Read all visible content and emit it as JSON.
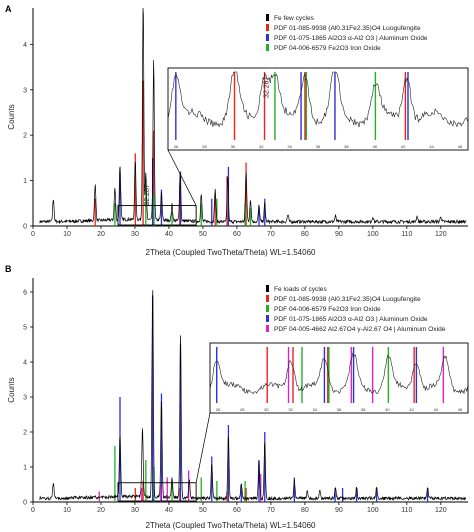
{
  "chart_data": [
    {
      "type": "line",
      "panel_label": "A",
      "xlabel": "2Theta (Coupled TwoTheta/Theta) WL=1.54060",
      "ylabel": "Counts",
      "xlim": [
        0,
        128
      ],
      "ylim": [
        0,
        4.8
      ],
      "xticks": [
        0,
        10,
        20,
        30,
        40,
        50,
        60,
        70,
        80,
        90,
        100,
        110,
        120
      ],
      "yticks": [
        0,
        1,
        2,
        3,
        4
      ],
      "legend_position": "top-right",
      "legend": [
        {
          "label": "Fe few cycles",
          "color": "#000000"
        },
        {
          "label": "PDF 01-085-9938 (Al0.31Fe2.35)O4 Luogufengite",
          "color": "#e8251b"
        },
        {
          "label": "PDF 01-075-1865 Al2O3 α-Al2 O3 | Aluminum Oxide",
          "color": "#2f2fd6"
        },
        {
          "label": "PDF 04-006-6579 Fe2O3 Iron Oxide",
          "color": "#1fb31f"
        }
      ],
      "annotation": "32.287",
      "zoom_box_x": [
        25,
        48
      ],
      "zoom_box_y": [
        0,
        0.45
      ],
      "inset_xticks": [
        "26",
        "28",
        "30",
        "32",
        "34",
        "36",
        "38",
        "40",
        "42",
        "44",
        "46"
      ],
      "reference_lines": [
        {
          "series": "PDF 01-085-9938 (Al0.31Fe2.35)O4 Luogufengite",
          "x": [
            18.3,
            30.1,
            32.4,
            35.5,
            43.2,
            53.6,
            57.1,
            62.7
          ],
          "y": [
            0.6,
            1.6,
            3.2,
            2.1,
            0.9,
            0.7,
            1.1,
            1.4
          ]
        },
        {
          "series": "PDF 01-075-1865 Al2O3 α-Al2 O3 | Aluminum Oxide",
          "x": [
            25.6,
            35.2,
            37.8,
            43.4,
            52.6,
            57.5,
            66.5,
            68.2
          ],
          "y": [
            1.2,
            1.5,
            0.8,
            1.2,
            0.6,
            1.3,
            0.4,
            0.6
          ]
        },
        {
          "series": "PDF 04-006-6579 Fe2O3 Iron Oxide",
          "x": [
            24.1,
            33.2,
            35.6,
            40.9,
            49.5,
            54.1,
            62.4,
            64.0
          ],
          "y": [
            0.5,
            1.0,
            0.7,
            0.3,
            0.5,
            0.6,
            0.5,
            0.4
          ]
        }
      ],
      "pattern": {
        "series": "Fe few cycles",
        "peaks": [
          [
            6,
            0.5
          ],
          [
            18.3,
            0.8
          ],
          [
            24.1,
            0.7
          ],
          [
            25.6,
            1.2
          ],
          [
            30.1,
            1.3
          ],
          [
            32.4,
            4.9
          ],
          [
            33.2,
            1.0
          ],
          [
            35.5,
            3.5
          ],
          [
            37.8,
            0.6
          ],
          [
            40.9,
            0.35
          ],
          [
            43.3,
            1.1
          ],
          [
            49.5,
            0.6
          ],
          [
            53.6,
            0.7
          ],
          [
            57.3,
            1.0
          ],
          [
            62.7,
            1.1
          ],
          [
            64.0,
            0.5
          ],
          [
            66.5,
            0.35
          ],
          [
            68.2,
            0.4
          ],
          [
            75,
            0.15
          ],
          [
            89,
            0.12
          ],
          [
            100,
            0.12
          ],
          [
            113,
            0.12
          ],
          [
            120,
            0.12
          ]
        ]
      }
    },
    {
      "type": "line",
      "panel_label": "B",
      "xlabel": "2Theta (Coupled TwoTheta/Theta) WL=1.54060",
      "ylabel": "Counts",
      "xlim": [
        0,
        128
      ],
      "ylim": [
        0,
        6.4
      ],
      "xticks": [
        0,
        10,
        20,
        30,
        40,
        50,
        60,
        70,
        80,
        90,
        100,
        110,
        120
      ],
      "yticks": [
        0,
        1,
        2,
        3,
        4,
        5,
        6
      ],
      "legend_position": "top-right",
      "legend": [
        {
          "label": "Fe loads of cycles",
          "color": "#000000"
        },
        {
          "label": "PDF 01-085-9938 (Al0.31Fe2.35)O4 Luogufengite",
          "color": "#e8251b"
        },
        {
          "label": "PDF 04-006-6579 Fe2O3 Iron Oxide",
          "color": "#1fb31f"
        },
        {
          "label": "PDF 01-075-1865 Al2O3 α-Al2 O3 | Aluminum Oxide",
          "color": "#2f2fd6"
        },
        {
          "label": "PDF 04-005-4662 Al2.67O4 γ-Al2.67 O4 | Aluminum Oxide",
          "color": "#e020c8"
        }
      ],
      "zoom_box_x": [
        25,
        48
      ],
      "zoom_box_y": [
        0,
        0.55
      ],
      "inset_xticks": [
        "26",
        "28",
        "30",
        "32",
        "34",
        "36",
        "38",
        "40",
        "42",
        "44",
        "46"
      ],
      "reference_lines": [
        {
          "series": "PDF 01-085-9938 (Al0.31Fe2.35)O4 Luogufengite",
          "x": [
            30.1,
            32.4,
            35.5,
            43.2,
            57.1,
            62.7
          ],
          "y": [
            0.4,
            0.6,
            0.5,
            0.4,
            0.3,
            0.4
          ]
        },
        {
          "series": "PDF 04-006-6579 Fe2O3 Iron Oxide",
          "x": [
            24.1,
            33.2,
            35.6,
            40.9,
            49.5,
            54.1,
            62.4
          ],
          "y": [
            1.6,
            1.2,
            1.0,
            0.6,
            0.7,
            0.6,
            0.6
          ]
        },
        {
          "series": "PDF 01-075-1865 Al2O3 α-Al2 O3 | Aluminum Oxide",
          "x": [
            25.6,
            35.2,
            37.8,
            43.4,
            52.6,
            57.5,
            61.3,
            66.5,
            68.2,
            76.9,
            88.9,
            91.1,
            95.2,
            101.1,
            116.1
          ],
          "y": [
            3.0,
            5.9,
            3.1,
            4.5,
            1.3,
            2.2,
            0.5,
            1.2,
            2.0,
            0.7,
            0.4,
            0.4,
            0.4,
            0.4,
            0.4
          ]
        },
        {
          "series": "PDF 04-005-4662 Al2.67O4 γ-Al2.67 O4 | Aluminum Oxide",
          "x": [
            19.5,
            32.0,
            37.6,
            39.5,
            45.8,
            67.0
          ],
          "y": [
            0.3,
            0.4,
            0.5,
            0.7,
            0.9,
            0.8
          ]
        }
      ],
      "pattern": {
        "series": "Fe loads of cycles",
        "peaks": [
          [
            6,
            0.4
          ],
          [
            25.6,
            1.8
          ],
          [
            32.2,
            2.0
          ],
          [
            35.2,
            6.0
          ],
          [
            37.8,
            2.8
          ],
          [
            40.9,
            0.6
          ],
          [
            43.4,
            4.6
          ],
          [
            46.0,
            0.5
          ],
          [
            52.6,
            1.0
          ],
          [
            57.5,
            1.8
          ],
          [
            61.3,
            0.4
          ],
          [
            66.5,
            1.1
          ],
          [
            68.2,
            1.6
          ],
          [
            76.9,
            0.5
          ],
          [
            80.7,
            0.2
          ],
          [
            84.4,
            0.2
          ],
          [
            89,
            0.3
          ],
          [
            95.2,
            0.3
          ],
          [
            101.1,
            0.3
          ],
          [
            116.1,
            0.3
          ]
        ]
      }
    }
  ]
}
